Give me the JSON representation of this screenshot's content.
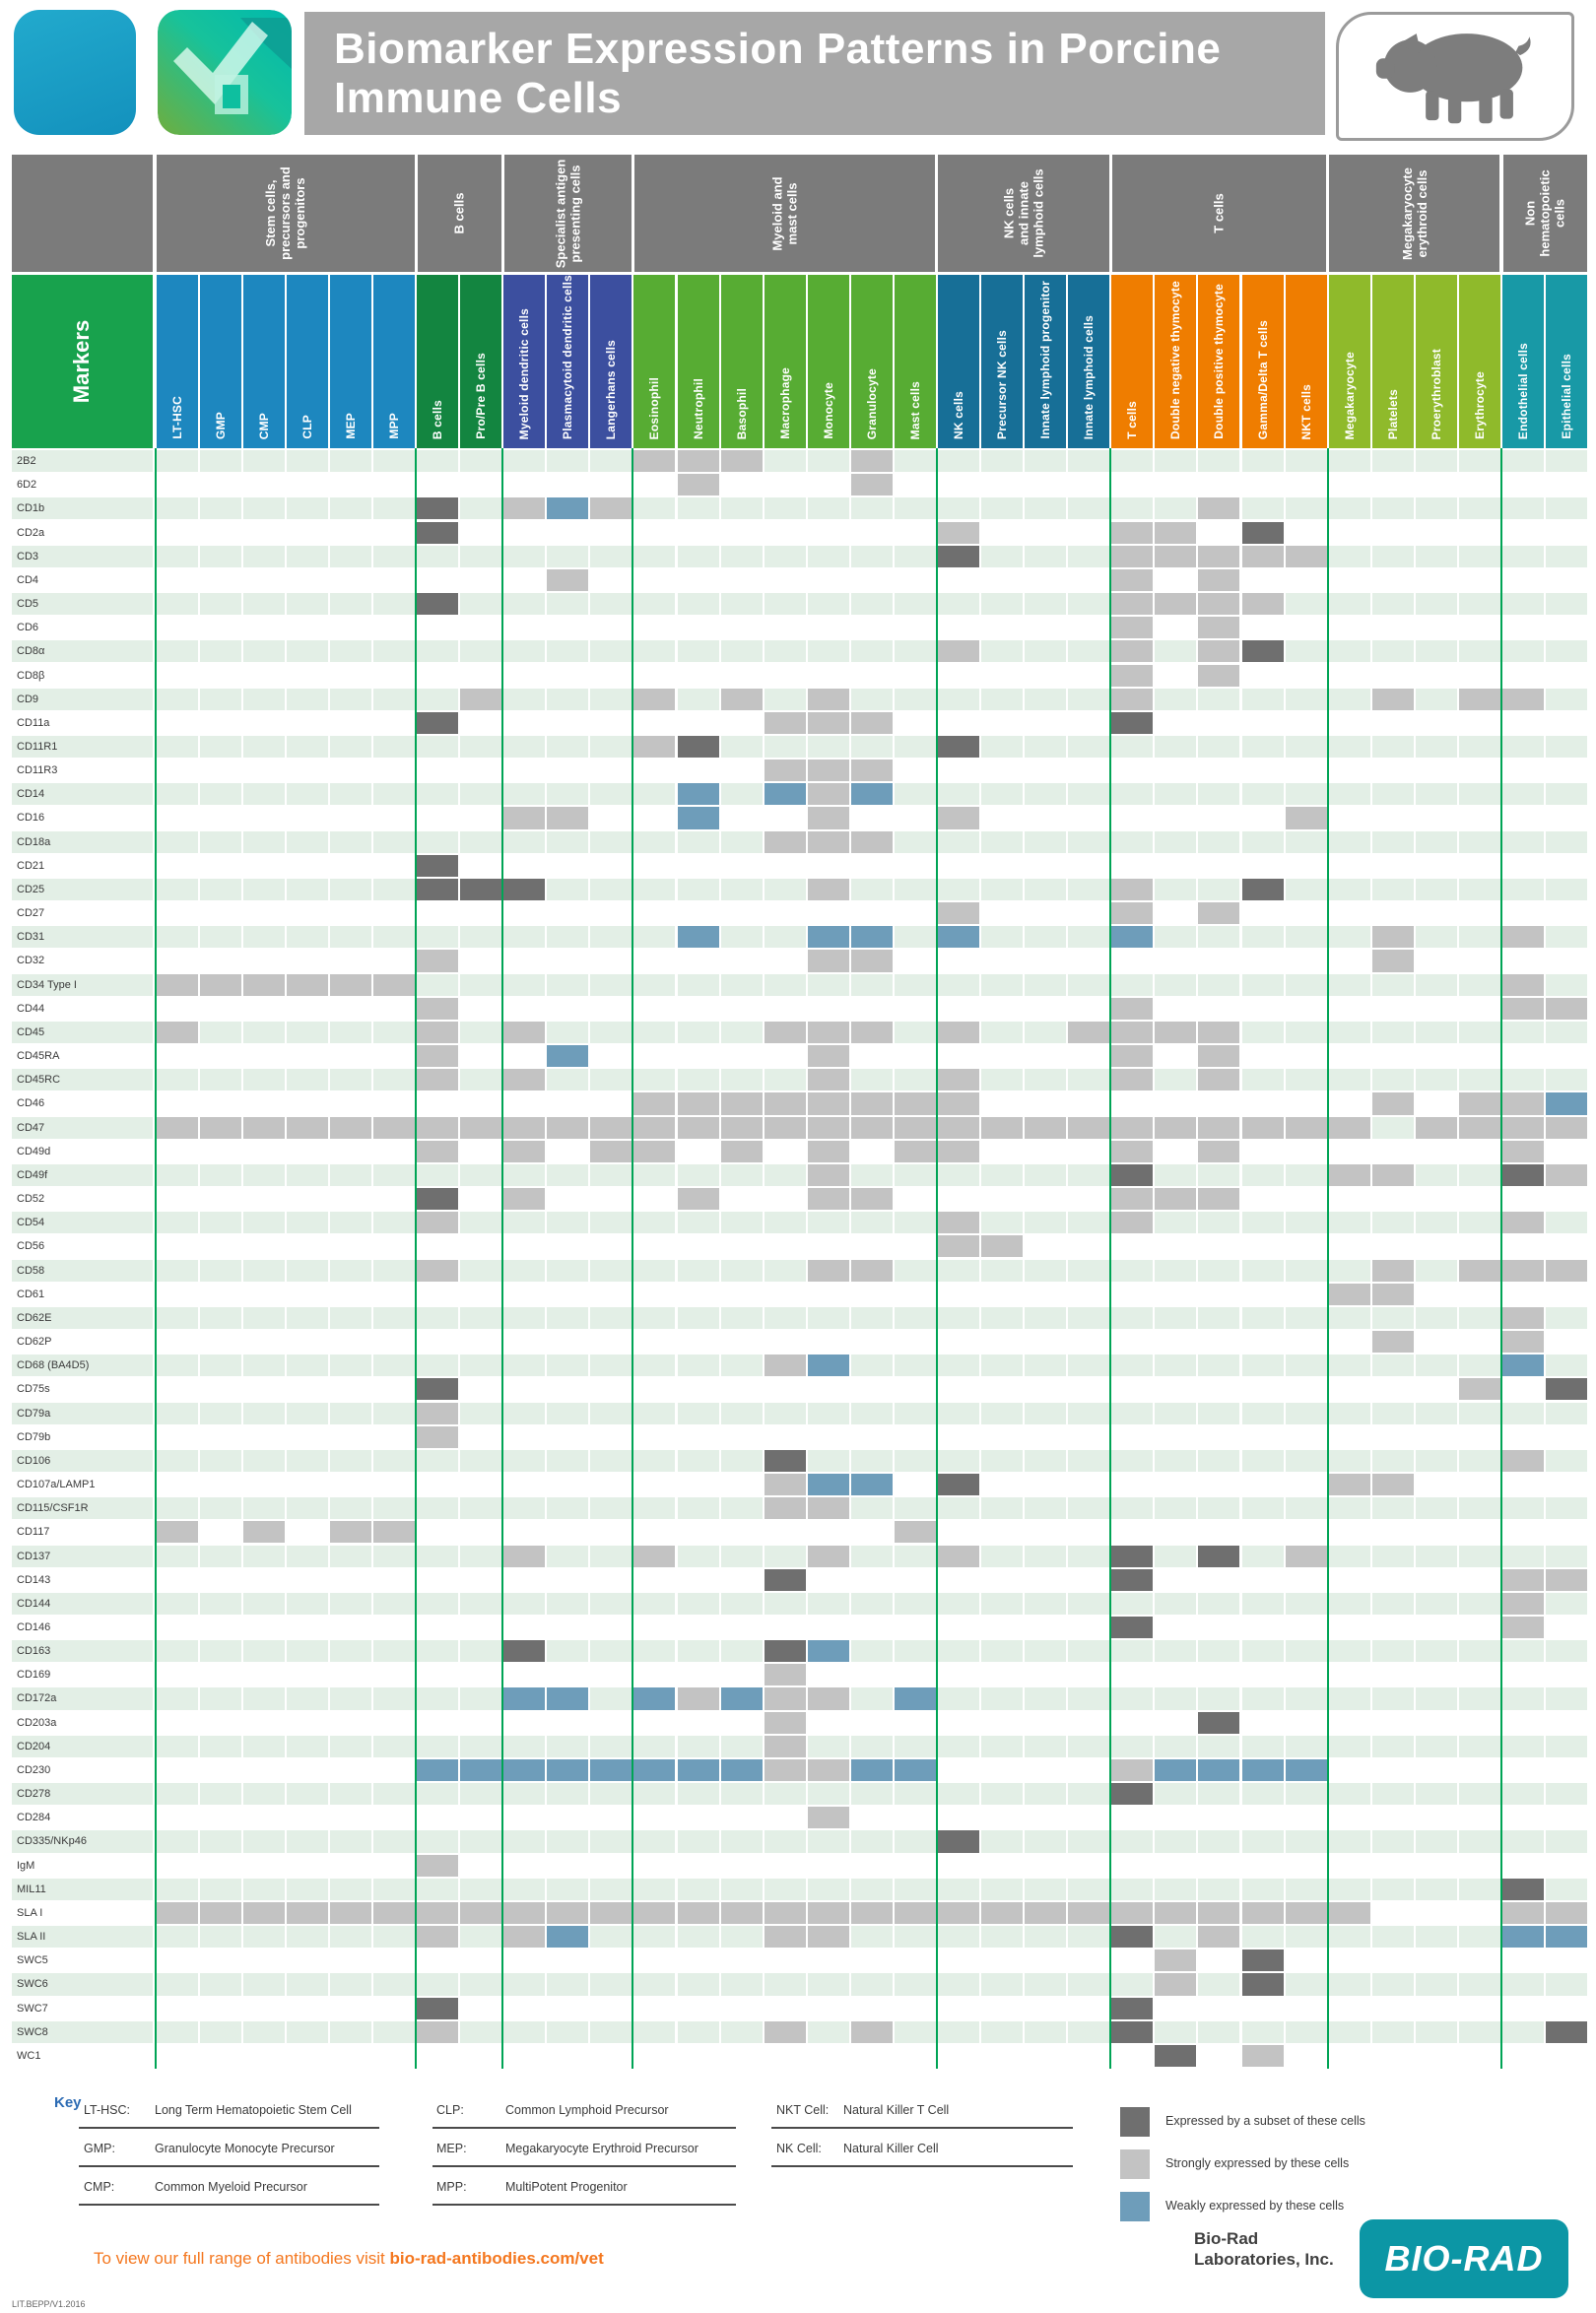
{
  "title": "Biomarker Expression Patterns in Porcine Immune Cells",
  "corner_label": "Markers",
  "chart_data": {
    "type": "heatmap",
    "legend_position": "bottom-right",
    "groups": [
      {
        "label": "Stem cells,\nprecursors and\nprogenitors",
        "color": "#1d87bf",
        "columns": [
          "LT-HSC",
          "GMP",
          "CMP",
          "CLP",
          "MEP",
          "MPP"
        ]
      },
      {
        "label": "B cells",
        "color": "#138540",
        "columns": [
          "B cells",
          "Pro/Pre B cells"
        ]
      },
      {
        "label": "Specialist antigen\npresenting cells",
        "color": "#3c4f9f",
        "columns": [
          "Myeloid dendritic cells",
          "Plasmacytoid dendritic cells",
          "Langerhans cells"
        ]
      },
      {
        "label": "Myeloid and\nmast cells",
        "color": "#57ac33",
        "columns": [
          "Eosinophil",
          "Neutrophil",
          "Basophil",
          "Macrophage",
          "Monocyte",
          "Granulocyte",
          "Mast cells"
        ]
      },
      {
        "label": "NK cells\nand innate\nlymphoid cells",
        "color": "#176f97",
        "columns": [
          "NK cells",
          "Precursor NK cells",
          "Innate lymphoid progenitor",
          "Innate lymphoid cells"
        ]
      },
      {
        "label": "T cells",
        "color": "#ef7d00",
        "columns": [
          "T cells",
          "Double negative thymocyte",
          "Double positive thymocyte",
          "Gamma/Delta T cells",
          "NKT cells"
        ]
      },
      {
        "label": "Megakaryocyte\nerythroid cells",
        "color": "#8fba2b",
        "columns": [
          "Megakaryocyte",
          "Platelets",
          "Proerythroblast",
          "Erythrocyte"
        ]
      },
      {
        "label": "Non\nhematopoietic\ncells",
        "color": "#1899a6",
        "columns": [
          "Endothelial cells",
          "Epithelial cells"
        ]
      }
    ],
    "value_legend": [
      {
        "code": "D",
        "color": "#6f6f6f",
        "label": "Expressed by a subset of these cells"
      },
      {
        "code": "S",
        "color": "#c3c3c3",
        "label": "Strongly expressed by these cells"
      },
      {
        "code": "W",
        "color": "#6e9dba",
        "label": "Weakly expressed by these cells"
      }
    ],
    "markers": [
      "2B2",
      "6D2",
      "CD1b",
      "CD2a",
      "CD3",
      "CD4",
      "CD5",
      "CD6",
      "CD8α",
      "CD8β",
      "CD9",
      "CD11a",
      "CD11R1",
      "CD11R3",
      "CD14",
      "CD16",
      "CD18a",
      "CD21",
      "CD25",
      "CD27",
      "CD31",
      "CD32",
      "CD34 Type I",
      "CD44",
      "CD45",
      "CD45RA",
      "CD45RC",
      "CD46",
      "CD47",
      "CD49d",
      "CD49f",
      "CD52",
      "CD54",
      "CD56",
      "CD58",
      "CD61",
      "CD62E",
      "CD62P",
      "CD68 (BA4D5)",
      "CD75s",
      "CD79a",
      "CD79b",
      "CD106",
      "CD107a/LAMP1",
      "CD115/CSF1R",
      "CD117",
      "CD137",
      "CD143",
      "CD144",
      "CD146",
      "CD163",
      "CD169",
      "CD172a",
      "CD203a",
      "CD204",
      "CD230",
      "CD278",
      "CD284",
      "CD335/NKp46",
      "IgM",
      "MIL11",
      "SLA I",
      "SLA II",
      "SWC5",
      "SWC6",
      "SWC7",
      "SWC8",
      "WC1"
    ],
    "codes": [
      "...........SSS..S................",
      "............S...S................",
      "......D.SWS.............S........",
      "......D...........S...SS.D.......",
      "..................D...SSSSS......",
      ".........S............S.S........",
      "......D...............SSSS.......",
      "......................S.S........",
      "..................S...S.SD.......",
      "......................S.S........",
      ".......S...S.S.S......S.....S.SS.",
      "......D.......SSS.....D..........",
      "...........SD.....D..............",
      "..............SSS................",
      "............W.WSW................",
      "........SS..W..S..S.......S......",
      "..............SSS................",
      "......D..........................",
      "......DDD......S......S..D.......",
      "..................S...S.S........",
      "............W..WW.W...W.....S..S.",
      "......S........SS...........S....",
      "SSSSSS.........................S.",
      "......S...............S........SS",
      "S.....S.S.....SSS.S..SSSS........",
      "......S..W.....S......S.S........",
      "......S.S......S..S...S.S........",
      "...........SSSSSSSS.........S.SSW",
      "SSSSSSSSSSSSSSSSSSSSSSSSSSSS.SSSS",
      "......S.S.SS.S.S.SS...S.S......S.",
      "...............S......D....SS..DS",
      "......D.S...S..SS.....SSS........",
      "......S...........S...S........S.",
      "..................SS.............",
      "......S........SS...........S.SSS",
      "...........................SS....",
      "...............................S.",
      "............................S..S.",
      "..............SW...............W.",
      "......D.......................S.D",
      "......S..........................",
      "......S..........................",
      "..............D................S.",
      "..............SWW.D........SS....",
      "..............SS.................",
      "S.S.SS...........S...............",
      "........S..S...S..S...D.D.S......",
      "..............D.......D........SS",
      "...............................S.",
      "......................D........S.",
      "........D.....DW.................",
      "..............S..................",
      "........WW.WSWSS.W...............",
      "..............S.........D........",
      "..............S..................",
      "......WWWWWWWWSSWW....SWWWW......",
      "......................D..........",
      "...............S.................",
      "..................D..............",
      "......S..........................",
      "...............................D.",
      "SSSSSSSSSSSSSSSSSSSSSSSSSSSS...SS",
      "......S.SW....SS......D.S......WW",
      ".......................S.D.......",
      ".......................S.D.......",
      "......D...............D..........",
      "......S.......S.S.....D.........D",
      ".......................D.S......."
    ]
  },
  "key": {
    "heading": "Key",
    "columns": [
      [
        {
          "term": "LT-HSC:",
          "def": "Long Term Hematopoietic Stem Cell"
        },
        {
          "term": "GMP:",
          "def": "Granulocyte Monocyte Precursor"
        },
        {
          "term": "CMP:",
          "def": "Common Myeloid Precursor"
        }
      ],
      [
        {
          "term": "CLP:",
          "def": "Common Lymphoid Precursor"
        },
        {
          "term": "MEP:",
          "def": "Megakaryocyte Erythroid Precursor"
        },
        {
          "term": "MPP:",
          "def": "MultiPotent Progenitor"
        }
      ],
      [
        {
          "term": "NKT Cell:",
          "def": "Natural Killer T Cell"
        },
        {
          "term": "NK Cell:",
          "def": "Natural Killer Cell"
        }
      ]
    ]
  },
  "footer": {
    "cta_prefix": "To view our full range of antibodies visit ",
    "cta_link": "bio-rad-antibodies.com/vet",
    "company_line1": "Bio-Rad",
    "company_line2": "Laboratories, Inc.",
    "brand_logo_text": "BIO-RAD",
    "lit_code": "LIT.BEPP/V1.2016"
  }
}
